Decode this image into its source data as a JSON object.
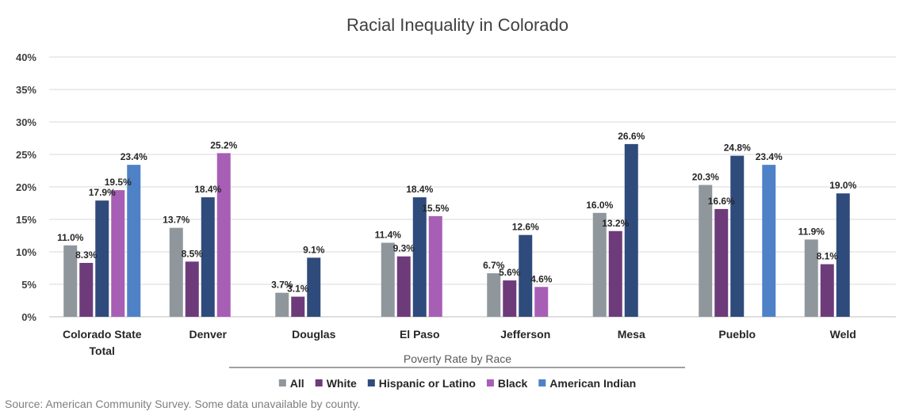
{
  "chart_data": {
    "type": "bar",
    "title": "Racial Inequality in Colorado",
    "xlabel": "Poverty Rate by Race",
    "ylabel": "",
    "ylim": [
      0,
      40
    ],
    "yticks": [
      "0%",
      "5%",
      "10%",
      "15%",
      "20%",
      "25%",
      "30%",
      "35%",
      "40%"
    ],
    "categories": [
      "Colorado State Total",
      "Denver",
      "Douglas",
      "El Paso",
      "Jefferson",
      "Mesa",
      "Pueblo",
      "Weld"
    ],
    "category_lines": [
      [
        "Colorado State",
        "Total"
      ],
      [
        "Denver"
      ],
      [
        "Douglas"
      ],
      [
        "El Paso"
      ],
      [
        "Jefferson"
      ],
      [
        "Mesa"
      ],
      [
        "Pueblo"
      ],
      [
        "Weld"
      ]
    ],
    "series": [
      {
        "name": "All",
        "color": "#8f979d",
        "values": [
          11.0,
          13.7,
          3.7,
          11.4,
          6.7,
          16.0,
          20.3,
          11.9
        ],
        "labels": [
          "11.0%",
          "13.7%",
          "3.7%",
          "11.4%",
          "6.7%",
          "16.0%",
          "20.3%",
          "11.9%"
        ]
      },
      {
        "name": "White",
        "color": "#6e3b7a",
        "values": [
          8.3,
          8.5,
          3.1,
          9.3,
          5.6,
          13.2,
          16.6,
          8.1
        ],
        "labels": [
          "8.3%",
          "8.5%",
          "3.1%",
          "9.3%",
          "5.6%",
          "13.2%",
          "16.6%",
          "8.1%"
        ]
      },
      {
        "name": "Hispanic or Latino",
        "color": "#2f4b7c",
        "values": [
          17.9,
          18.4,
          9.1,
          18.4,
          12.6,
          26.6,
          24.8,
          19.0
        ],
        "labels": [
          "17.9%",
          "18.4%",
          "9.1%",
          "18.4%",
          "12.6%",
          "26.6%",
          "24.8%",
          "19.0%"
        ]
      },
      {
        "name": "Black",
        "color": "#a75eb5",
        "values": [
          19.5,
          25.2,
          null,
          15.5,
          4.6,
          null,
          null,
          null
        ],
        "labels": [
          "19.5%",
          "25.2%",
          null,
          "15.5%",
          "4.6%",
          null,
          null,
          null
        ]
      },
      {
        "name": "American Indian",
        "color": "#4f81c7",
        "values": [
          23.4,
          null,
          null,
          null,
          null,
          null,
          23.4,
          null
        ],
        "labels": [
          "23.4%",
          null,
          null,
          null,
          null,
          null,
          "23.4%",
          null
        ]
      }
    ],
    "grid": true,
    "legend_position": "bottom"
  },
  "source": "Source: American Community Survey. Some data unavailable by county."
}
